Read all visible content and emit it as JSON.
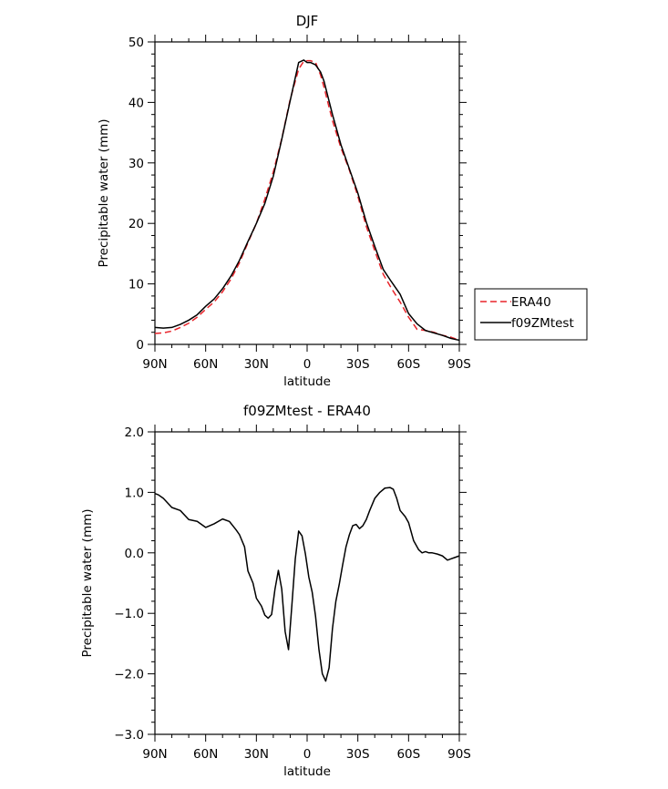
{
  "chart_data": [
    {
      "type": "line",
      "title": "DJF",
      "xlabel": "latitude",
      "ylabel": "Precipitable water (mm)",
      "xlim": [
        90,
        -90
      ],
      "ylim": [
        0,
        50
      ],
      "xticks": [
        {
          "value": 90,
          "label": "90N"
        },
        {
          "value": 60,
          "label": "60N"
        },
        {
          "value": 30,
          "label": "30N"
        },
        {
          "value": 0,
          "label": "0"
        },
        {
          "value": -30,
          "label": "30S"
        },
        {
          "value": -60,
          "label": "60S"
        },
        {
          "value": -90,
          "label": "90S"
        }
      ],
      "yticks": [
        {
          "value": 0,
          "label": "0"
        },
        {
          "value": 10,
          "label": "10"
        },
        {
          "value": 20,
          "label": "20"
        },
        {
          "value": 30,
          "label": "30"
        },
        {
          "value": 40,
          "label": "40"
        },
        {
          "value": 50,
          "label": "50"
        }
      ],
      "legend": {
        "position": "right"
      },
      "series": [
        {
          "name": "ERA40",
          "color": "#e8242a",
          "dash": true,
          "x": [
            90,
            85,
            80,
            75,
            70,
            65,
            60,
            55,
            50,
            45,
            40,
            35,
            30,
            25,
            20,
            15,
            10,
            5,
            2,
            0,
            -2,
            -5,
            -8,
            -10,
            -15,
            -20,
            -25,
            -30,
            -35,
            -40,
            -45,
            -50,
            -55,
            -60,
            -65,
            -70,
            -75,
            -80,
            -85,
            -88,
            -90
          ],
          "y": [
            1.8,
            1.9,
            2.2,
            2.8,
            3.5,
            4.5,
            5.8,
            7.0,
            8.7,
            10.8,
            13.5,
            16.8,
            20.0,
            24.0,
            28.5,
            34.0,
            40.5,
            45.5,
            46.8,
            46.9,
            46.9,
            46.6,
            44.5,
            42.5,
            37.0,
            32.5,
            28.8,
            24.5,
            19.5,
            15.5,
            11.6,
            9.2,
            7.0,
            4.5,
            2.5,
            2.3,
            2.0,
            1.5,
            1.2,
            0.9,
            0.8
          ]
        },
        {
          "name": "f09ZMtest",
          "color": "#000000",
          "dash": false,
          "x": [
            90,
            85,
            80,
            75,
            70,
            65,
            60,
            55,
            50,
            45,
            40,
            35,
            30,
            25,
            20,
            15,
            10,
            5,
            2,
            0,
            -2,
            -5,
            -8,
            -10,
            -15,
            -20,
            -25,
            -30,
            -35,
            -40,
            -45,
            -50,
            -55,
            -60,
            -65,
            -70,
            -75,
            -80,
            -85,
            -88,
            -90
          ],
          "y": [
            2.8,
            2.7,
            2.8,
            3.3,
            4.0,
            4.9,
            6.3,
            7.5,
            9.2,
            11.3,
            13.9,
            17.0,
            20.0,
            23.3,
            27.8,
            33.9,
            40.3,
            46.6,
            47.0,
            46.6,
            46.6,
            46.2,
            45.0,
            43.5,
            38.0,
            33.0,
            29.0,
            25.0,
            20.2,
            16.2,
            12.4,
            10.3,
            8.3,
            5.1,
            3.4,
            2.3,
            1.9,
            1.5,
            1.0,
            0.8,
            0.7
          ]
        }
      ]
    },
    {
      "type": "line",
      "title": "f09ZMtest - ERA40",
      "xlabel": "latitude",
      "ylabel": "Precipitable water (mm)",
      "xlim": [
        90,
        -90
      ],
      "ylim": [
        -3,
        2
      ],
      "xticks": [
        {
          "value": 90,
          "label": "90N"
        },
        {
          "value": 60,
          "label": "60N"
        },
        {
          "value": 30,
          "label": "30N"
        },
        {
          "value": 0,
          "label": "0"
        },
        {
          "value": -30,
          "label": "30S"
        },
        {
          "value": -60,
          "label": "60S"
        },
        {
          "value": -90,
          "label": "90S"
        }
      ],
      "yticks": [
        {
          "value": -3,
          "label": "−3.0"
        },
        {
          "value": -2,
          "label": "−2.0"
        },
        {
          "value": -1,
          "label": "−1.0"
        },
        {
          "value": 0,
          "label": "0.0"
        },
        {
          "value": 1,
          "label": "1.0"
        },
        {
          "value": 2,
          "label": "2.0"
        }
      ],
      "series": [
        {
          "name": "",
          "color": "#000000",
          "dash": false,
          "x": [
            90,
            88,
            85,
            80,
            75,
            70,
            65,
            60,
            55,
            50,
            46,
            42,
            40,
            37,
            35,
            32,
            30,
            27,
            25,
            23,
            21,
            19,
            17,
            15,
            13,
            11,
            9,
            7,
            5,
            3,
            1,
            -1,
            -3,
            -5,
            -7,
            -9,
            -11,
            -13,
            -15,
            -17,
            -19,
            -21,
            -23,
            -25,
            -27,
            -29,
            -31,
            -33,
            -35,
            -37,
            -40,
            -43,
            -46,
            -49,
            -51,
            -53,
            -55,
            -58,
            -60,
            -63,
            -66,
            -68,
            -70,
            -72,
            -74,
            -77,
            -80,
            -83,
            -85,
            -87,
            -90
          ],
          "y": [
            0.98,
            0.96,
            0.9,
            0.75,
            0.7,
            0.55,
            0.52,
            0.42,
            0.48,
            0.56,
            0.52,
            0.38,
            0.3,
            0.1,
            -0.3,
            -0.5,
            -0.75,
            -0.88,
            -1.03,
            -1.08,
            -1.02,
            -0.6,
            -0.29,
            -0.6,
            -1.3,
            -1.6,
            -0.86,
            -0.1,
            0.36,
            0.28,
            -0.02,
            -0.4,
            -0.65,
            -1.05,
            -1.6,
            -2.0,
            -2.12,
            -1.9,
            -1.25,
            -0.8,
            -0.52,
            -0.2,
            0.1,
            0.3,
            0.45,
            0.47,
            0.4,
            0.45,
            0.55,
            0.7,
            0.9,
            1.0,
            1.07,
            1.08,
            1.05,
            0.9,
            0.7,
            0.6,
            0.5,
            0.2,
            0.05,
            0.0,
            0.02,
            0.0,
            0.0,
            -0.02,
            -0.05,
            -0.12,
            -0.1,
            -0.08,
            -0.05
          ]
        }
      ]
    }
  ]
}
